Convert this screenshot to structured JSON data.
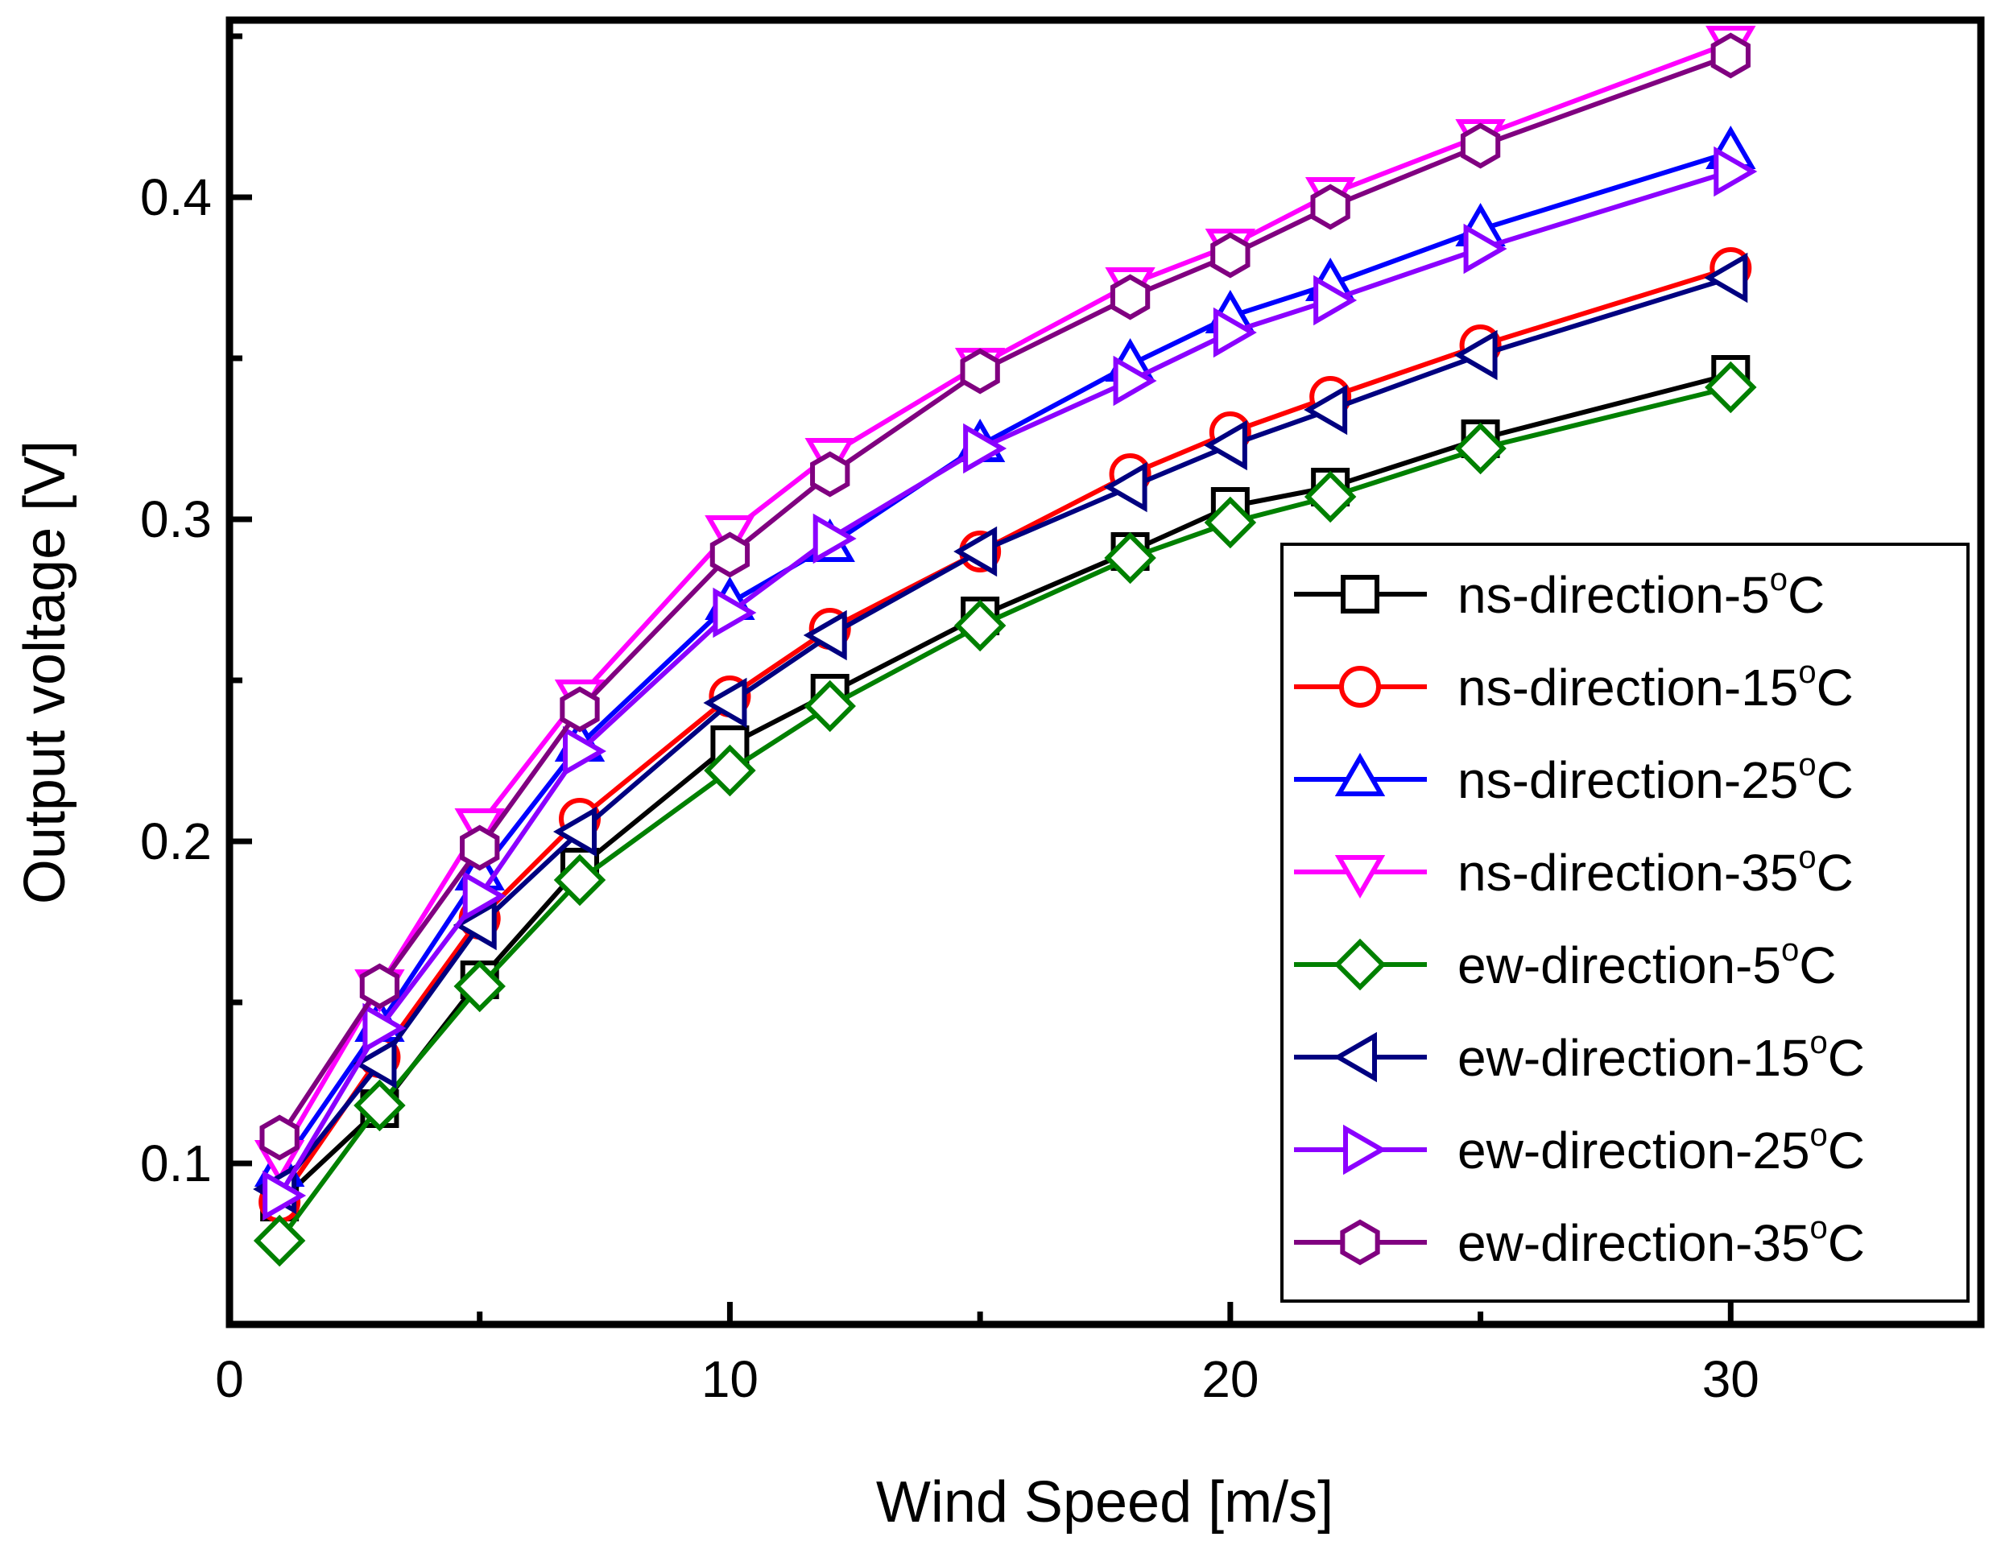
{
  "chart_data": {
    "type": "line",
    "title": "",
    "xlabel": "Wind Speed [m/s]",
    "ylabel": "Output voltage [V]",
    "xlim": [
      0,
      35
    ],
    "ylim": [
      0.05,
      0.455
    ],
    "x_ticks": [
      0,
      10,
      20,
      30
    ],
    "x_minor_ticks": [
      5,
      15,
      25,
      35
    ],
    "x_tick_labels": [
      "0",
      "10",
      "20",
      "30"
    ],
    "y_ticks": [
      0.1,
      0.2,
      0.3,
      0.4
    ],
    "y_minor_ticks": [
      0.15,
      0.25,
      0.35,
      0.45
    ],
    "y_tick_labels": [
      "0.1",
      "0.2",
      "0.3",
      "0.4"
    ],
    "grid": false,
    "legend_position": "right",
    "degree_symbol": "o",
    "legend_unit": "C",
    "x": [
      1,
      3,
      5,
      7,
      10,
      12,
      15,
      18,
      20,
      22,
      25,
      30
    ],
    "series": [
      {
        "name": "ns-direction-5",
        "color": "#000000",
        "marker": "square",
        "values": [
          0.088,
          0.117,
          0.157,
          0.192,
          0.23,
          0.246,
          0.27,
          0.29,
          0.304,
          0.31,
          0.325,
          0.345
        ]
      },
      {
        "name": "ns-direction-15",
        "color": "#ff0000",
        "marker": "circle",
        "values": [
          0.088,
          0.133,
          0.176,
          0.207,
          0.245,
          0.266,
          0.29,
          0.314,
          0.327,
          0.338,
          0.354,
          0.378
        ]
      },
      {
        "name": "ns-direction-25",
        "color": "#0000ff",
        "marker": "triangle-up",
        "values": [
          0.098,
          0.143,
          0.19,
          0.23,
          0.274,
          0.292,
          0.323,
          0.348,
          0.363,
          0.373,
          0.39,
          0.414
        ]
      },
      {
        "name": "ns-direction-35",
        "color": "#ff00ff",
        "marker": "triangle-down",
        "values": [
          0.102,
          0.155,
          0.205,
          0.245,
          0.296,
          0.32,
          0.348,
          0.373,
          0.385,
          0.401,
          0.419,
          0.448
        ]
      },
      {
        "name": "ew-direction-5",
        "color": "#008000",
        "marker": "diamond",
        "values": [
          0.076,
          0.118,
          0.155,
          0.188,
          0.222,
          0.242,
          0.267,
          0.288,
          0.299,
          0.307,
          0.322,
          0.341
        ]
      },
      {
        "name": "ew-direction-15",
        "color": "#000080",
        "marker": "triangle-left",
        "values": [
          0.092,
          0.131,
          0.174,
          0.203,
          0.243,
          0.264,
          0.29,
          0.31,
          0.323,
          0.334,
          0.351,
          0.375
        ]
      },
      {
        "name": "ew-direction-25",
        "color": "#8b00ff",
        "marker": "triangle-right",
        "values": [
          0.09,
          0.142,
          0.183,
          0.228,
          0.271,
          0.294,
          0.322,
          0.343,
          0.358,
          0.368,
          0.384,
          0.408
        ]
      },
      {
        "name": "ew-direction-35",
        "color": "#800080",
        "marker": "hexagon",
        "values": [
          0.108,
          0.155,
          0.198,
          0.241,
          0.289,
          0.314,
          0.346,
          0.369,
          0.382,
          0.397,
          0.416,
          0.444
        ]
      }
    ]
  }
}
